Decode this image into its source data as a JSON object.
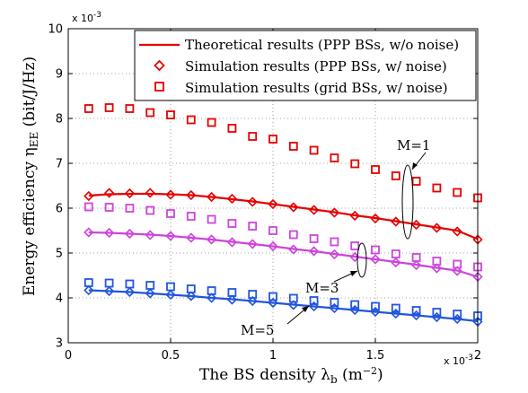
{
  "chart_data": {
    "type": "line",
    "xlabel": "The BS density λ",
    "xlabel_sub": "b",
    "xlabel_unit_pre": " (m",
    "xlabel_unit_sup": "−2",
    "xlabel_unit_post": ")",
    "ylabel": "Energy efficiency η",
    "ylabel_sub": "EE",
    "ylabel_unit": " (bit/J/Hz)",
    "x_multiplier": "x 10",
    "x_multiplier_exp": "-3",
    "y_multiplier": "x 10",
    "y_multiplier_exp": "-3",
    "xlim": [
      0,
      2
    ],
    "ylim": [
      3,
      10
    ],
    "xticks": [
      0,
      0.5,
      1,
      1.5,
      2
    ],
    "xtick_labels": [
      "0",
      "0.5",
      "1",
      "1.5",
      "2"
    ],
    "yticks": [
      3,
      4,
      5,
      6,
      7,
      8,
      9,
      10
    ],
    "ytick_labels": [
      "3",
      "4",
      "5",
      "6",
      "7",
      "8",
      "9",
      "10"
    ],
    "grid": true,
    "legend_position": "top-right",
    "x": [
      0.1,
      0.2,
      0.3,
      0.4,
      0.5,
      0.6,
      0.7,
      0.8,
      0.9,
      1.0,
      1.1,
      1.2,
      1.3,
      1.4,
      1.5,
      1.6,
      1.7,
      1.8,
      1.9,
      2.0
    ],
    "legend": [
      {
        "label": "Theoretical results (PPP BSs, w/o noise)",
        "marker": "line"
      },
      {
        "label": "Simulation results (PPP BSs, w/ noise)",
        "marker": "diamond"
      },
      {
        "label": "Simulation results (grid BSs, w/ noise)",
        "marker": "square"
      }
    ],
    "series": [
      {
        "group": "M=1",
        "kind": "theory",
        "color": "#e60000",
        "values": [
          6.28,
          6.31,
          6.32,
          6.32,
          6.31,
          6.29,
          6.25,
          6.2,
          6.15,
          6.09,
          6.03,
          5.97,
          5.91,
          5.84,
          5.78,
          5.71,
          5.64,
          5.57,
          5.5,
          5.31
        ]
      },
      {
        "group": "M=1",
        "kind": "ppp_sim",
        "color": "#e60000",
        "values": [
          6.27,
          6.34,
          6.33,
          6.34,
          6.3,
          6.29,
          6.25,
          6.21,
          6.14,
          6.09,
          6.02,
          5.96,
          5.9,
          5.83,
          5.77,
          5.7,
          5.63,
          5.56,
          5.48,
          5.3
        ]
      },
      {
        "group": "M=1",
        "kind": "grid_sim",
        "color": "#e60000",
        "values": [
          8.22,
          8.24,
          8.22,
          8.13,
          8.08,
          7.97,
          7.91,
          7.78,
          7.6,
          7.54,
          7.38,
          7.29,
          7.12,
          6.99,
          6.86,
          6.72,
          6.6,
          6.45,
          6.35,
          6.23
        ]
      },
      {
        "group": "M=3",
        "kind": "theory",
        "color": "#cc44dd",
        "values": [
          5.46,
          5.45,
          5.43,
          5.41,
          5.38,
          5.34,
          5.3,
          5.25,
          5.2,
          5.15,
          5.09,
          5.04,
          4.98,
          4.92,
          4.86,
          4.8,
          4.74,
          4.67,
          4.61,
          4.47
        ]
      },
      {
        "group": "M=3",
        "kind": "ppp_sim",
        "color": "#cc44dd",
        "values": [
          5.46,
          5.45,
          5.43,
          5.4,
          5.38,
          5.34,
          5.3,
          5.24,
          5.2,
          5.15,
          5.08,
          5.04,
          4.97,
          4.91,
          4.86,
          4.79,
          4.73,
          4.66,
          4.6,
          4.47
        ]
      },
      {
        "group": "M=3",
        "kind": "grid_sim",
        "color": "#cc44dd",
        "values": [
          6.03,
          6.02,
          6.0,
          5.95,
          5.88,
          5.82,
          5.75,
          5.66,
          5.6,
          5.5,
          5.41,
          5.32,
          5.25,
          5.16,
          5.07,
          4.98,
          4.9,
          4.82,
          4.75,
          4.69
        ]
      },
      {
        "group": "M=5",
        "kind": "theory",
        "color": "#2255dd",
        "values": [
          4.17,
          4.15,
          4.13,
          4.1,
          4.07,
          4.04,
          4.0,
          3.97,
          3.93,
          3.89,
          3.85,
          3.81,
          3.77,
          3.73,
          3.69,
          3.65,
          3.61,
          3.57,
          3.53,
          3.48
        ]
      },
      {
        "group": "M=5",
        "kind": "ppp_sim",
        "color": "#2255dd",
        "values": [
          4.17,
          4.15,
          4.13,
          4.1,
          4.07,
          4.04,
          4.0,
          3.96,
          3.93,
          3.89,
          3.84,
          3.81,
          3.77,
          3.73,
          3.69,
          3.65,
          3.61,
          3.57,
          3.53,
          3.47
        ]
      },
      {
        "group": "M=5",
        "kind": "grid_sim",
        "color": "#2255dd",
        "values": [
          4.34,
          4.33,
          4.31,
          4.28,
          4.25,
          4.2,
          4.16,
          4.12,
          4.08,
          4.03,
          3.99,
          3.94,
          3.9,
          3.85,
          3.81,
          3.77,
          3.72,
          3.68,
          3.64,
          3.6
        ]
      }
    ],
    "annotations": [
      "M=1",
      "M=3",
      "M=5"
    ]
  }
}
